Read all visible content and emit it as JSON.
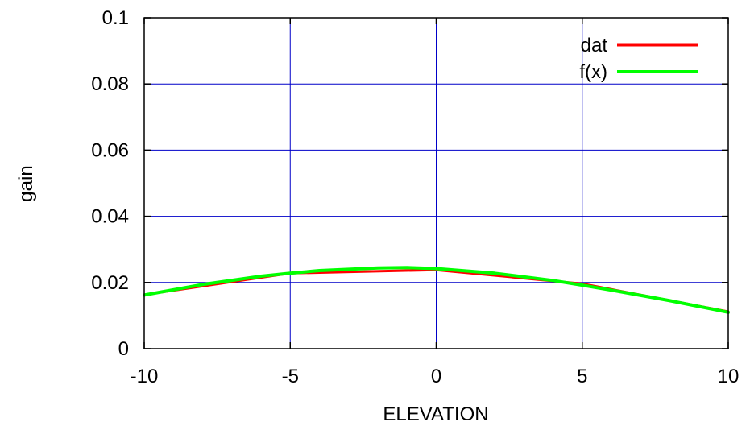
{
  "chart_data": {
    "type": "line",
    "xlabel": "ELEVATION",
    "ylabel": "gain",
    "xlim": [
      -10,
      10
    ],
    "ylim": [
      0,
      0.1
    ],
    "x_ticks": [
      -10,
      -5,
      0,
      5,
      10
    ],
    "x_tick_labels": [
      "-10",
      "-5",
      "0",
      "5",
      "10"
    ],
    "y_ticks": [
      0,
      0.02,
      0.04,
      0.06,
      0.08,
      0.1
    ],
    "y_tick_labels": [
      "0",
      "0.02",
      "0.04",
      "0.06",
      "0.08",
      "0.1"
    ],
    "grid": true,
    "grid_color": "#0000c8",
    "legend_position": "top-right",
    "series": [
      {
        "name": "dat",
        "color": "#ff0000",
        "x": [
          -10,
          -5,
          0,
          5,
          10
        ],
        "y": [
          0.0163,
          0.0228,
          0.0238,
          0.0196,
          0.0112
        ]
      },
      {
        "name": "f(x)",
        "color": "#00ff00",
        "x": [
          -10,
          -8,
          -6,
          -5,
          -4,
          -2,
          -1,
          0,
          2,
          4,
          5,
          6,
          8,
          10
        ],
        "y": [
          0.0162,
          0.0194,
          0.0219,
          0.0228,
          0.0236,
          0.0244,
          0.0245,
          0.0242,
          0.0228,
          0.0206,
          0.0192,
          0.0177,
          0.0145,
          0.011
        ]
      }
    ]
  }
}
